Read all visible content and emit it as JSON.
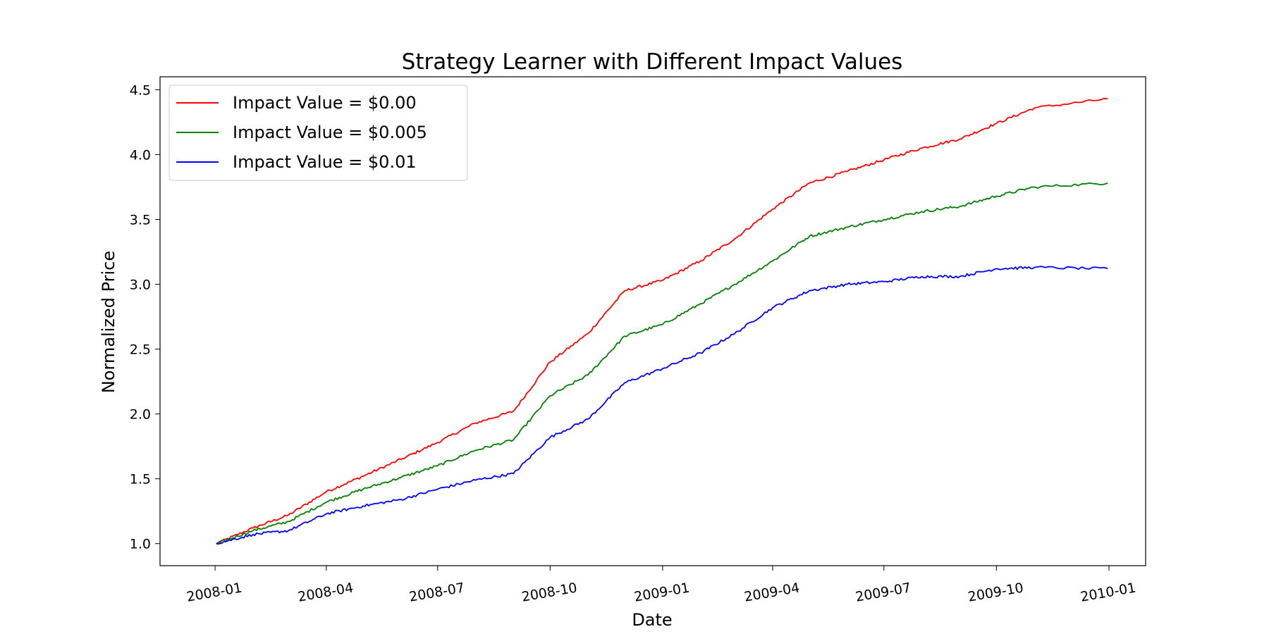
{
  "chart_data": {
    "type": "line",
    "title": "Strategy Learner with Different Impact Values",
    "xlabel": "Date",
    "ylabel": "Normalized Price",
    "xlim": [
      "2007-11-17",
      "2010-01-31"
    ],
    "ylim": [
      0.83,
      4.6
    ],
    "x_ticks": [
      "2008-01",
      "2008-04",
      "2008-07",
      "2008-10",
      "2009-01",
      "2009-04",
      "2009-07",
      "2009-10",
      "2010-01"
    ],
    "y_ticks": [
      "1.0",
      "1.5",
      "2.0",
      "2.5",
      "3.0",
      "3.5",
      "4.0",
      "4.5"
    ],
    "grid": false,
    "legend_position": "top-left",
    "series": [
      {
        "name": "Impact Value = $0.00",
        "color": "#ff0000",
        "x": [
          "2008-01-02",
          "2008-02-01",
          "2008-03-01",
          "2008-04-01",
          "2008-05-01",
          "2008-06-01",
          "2008-07-01",
          "2008-08-01",
          "2008-09-01",
          "2008-10-01",
          "2008-11-01",
          "2008-12-01",
          "2009-01-01",
          "2009-02-01",
          "2009-03-01",
          "2009-04-01",
          "2009-05-01",
          "2009-06-01",
          "2009-07-01",
          "2009-08-01",
          "2009-09-01",
          "2009-10-01",
          "2009-11-01",
          "2009-12-31"
        ],
        "y": [
          1.0,
          1.12,
          1.22,
          1.4,
          1.52,
          1.65,
          1.78,
          1.93,
          2.02,
          2.4,
          2.62,
          2.95,
          3.03,
          3.18,
          3.35,
          3.58,
          3.78,
          3.87,
          3.96,
          4.05,
          4.12,
          4.24,
          4.36,
          4.43
        ]
      },
      {
        "name": "Impact Value = $0.005",
        "color": "#008000",
        "x": [
          "2008-01-02",
          "2008-02-01",
          "2008-03-01",
          "2008-04-01",
          "2008-05-01",
          "2008-06-01",
          "2008-07-01",
          "2008-08-01",
          "2008-09-01",
          "2008-10-01",
          "2008-11-01",
          "2008-12-01",
          "2009-01-01",
          "2009-02-01",
          "2009-03-01",
          "2009-04-01",
          "2009-05-01",
          "2009-06-01",
          "2009-07-01",
          "2009-08-01",
          "2009-09-01",
          "2009-10-01",
          "2009-11-01",
          "2009-12-31"
        ],
        "y": [
          1.0,
          1.1,
          1.17,
          1.32,
          1.42,
          1.51,
          1.6,
          1.72,
          1.8,
          2.14,
          2.3,
          2.6,
          2.69,
          2.85,
          3.0,
          3.18,
          3.37,
          3.44,
          3.5,
          3.56,
          3.6,
          3.68,
          3.75,
          3.78
        ]
      },
      {
        "name": "Impact Value = $0.01",
        "color": "#0000ff",
        "x": [
          "2008-01-02",
          "2008-02-01",
          "2008-03-01",
          "2008-04-01",
          "2008-05-01",
          "2008-06-01",
          "2008-07-01",
          "2008-08-01",
          "2008-09-01",
          "2008-10-01",
          "2008-11-01",
          "2008-12-01",
          "2009-01-01",
          "2009-02-01",
          "2009-03-01",
          "2009-04-01",
          "2009-05-01",
          "2009-06-01",
          "2009-07-01",
          "2009-08-01",
          "2009-09-01",
          "2009-10-01",
          "2009-11-01",
          "2009-12-31"
        ],
        "y": [
          1.0,
          1.07,
          1.1,
          1.23,
          1.29,
          1.34,
          1.42,
          1.49,
          1.54,
          1.82,
          1.96,
          2.24,
          2.35,
          2.47,
          2.62,
          2.82,
          2.95,
          3.0,
          3.02,
          3.06,
          3.06,
          3.12,
          3.13,
          3.12
        ]
      }
    ]
  }
}
